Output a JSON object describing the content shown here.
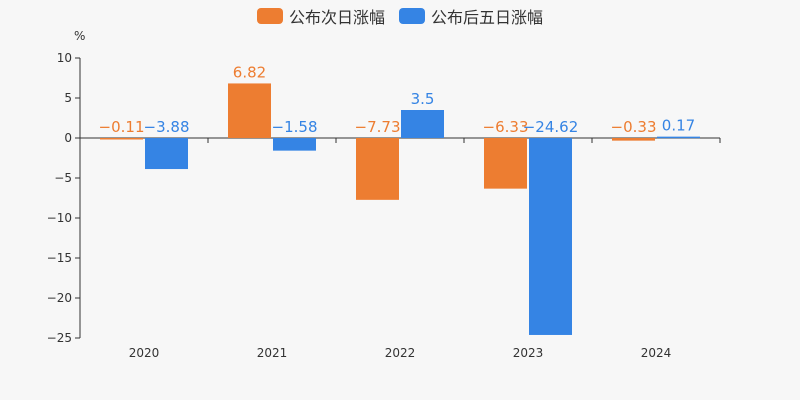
{
  "chart_data": {
    "type": "bar",
    "categories": [
      "2020",
      "2021",
      "2022",
      "2023",
      "2024"
    ],
    "series": [
      {
        "name": "公布次日涨幅",
        "color": "#ed7d31",
        "values": [
          -0.11,
          6.82,
          -7.73,
          -6.33,
          -0.33
        ],
        "labels": [
          "−0.11",
          "6.82",
          "−7.73",
          "−6.33",
          "−0.33"
        ]
      },
      {
        "name": "公布后五日涨幅",
        "color": "#3584e4",
        "values": [
          -3.88,
          -1.58,
          3.5,
          -24.62,
          0.17
        ],
        "labels": [
          "−3.88",
          "−1.58",
          "3.5",
          "−24.62",
          "0.17"
        ]
      }
    ],
    "ylabel": "%",
    "ylim": [
      -25,
      10
    ],
    "yticks": [
      10,
      5,
      0,
      -5,
      -10,
      -15,
      -20,
      -25
    ],
    "ytick_labels": [
      "10",
      "5",
      "0",
      "−5",
      "−10",
      "−15",
      "−20",
      "−25"
    ],
    "grid": false,
    "legend_position": "top-center"
  }
}
